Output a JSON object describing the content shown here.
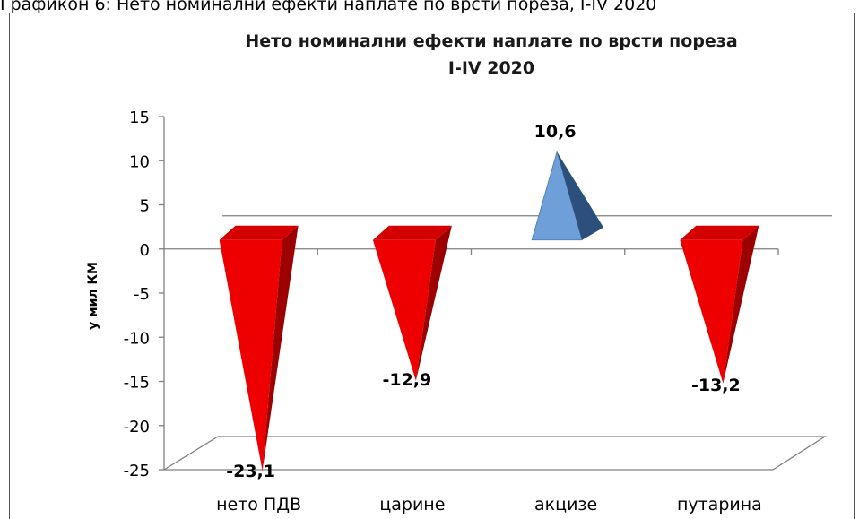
{
  "caption": "Графикон 6: Нето номинални ефекти наплате по врсти пореза, I-IV 2020",
  "chart_data": {
    "type": "bar",
    "title": "Нето номинални ефекти наплате по врсти пореза",
    "subtitle": "I-IV 2020",
    "ylabel": "у мил КМ",
    "categories": [
      "нето ПДВ",
      "царине",
      "акцизе",
      "путарина"
    ],
    "values": [
      -23.1,
      -12.9,
      10.6,
      -13.2
    ],
    "data_labels": [
      "-23,1",
      "-12,9",
      "10,6",
      "-13,2"
    ],
    "ylim": [
      -25,
      15
    ],
    "yticks": [
      15,
      10,
      5,
      0,
      -5,
      -10,
      -15,
      -20,
      -25
    ],
    "grid": false,
    "legend": "none",
    "colors": {
      "negative": "#ee0000",
      "negative_dark": "#9c0000",
      "positive": "#6f9fd8",
      "positive_dark": "#2d4f7c"
    }
  }
}
